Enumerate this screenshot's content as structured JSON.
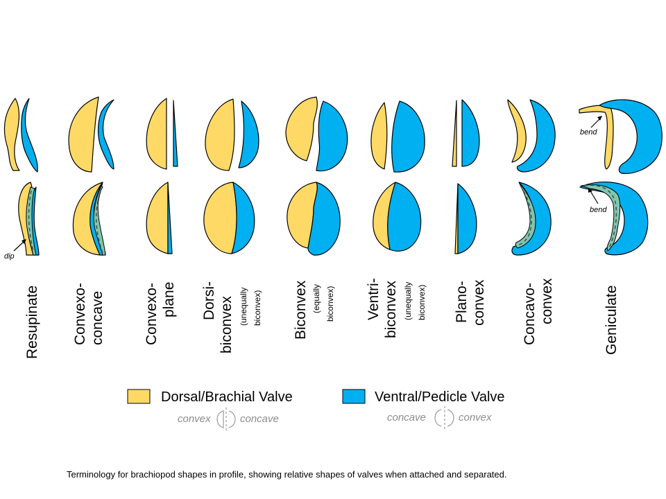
{
  "colors": {
    "dorsal": "#FFD966",
    "ventral": "#00B0F0",
    "overlap": "#7FC7AF"
  },
  "shapes": [
    {
      "name": "Resupinate",
      "lines": [
        "Resupinate"
      ],
      "sub": []
    },
    {
      "name": "Convexo-concave",
      "lines": [
        "Convexo-",
        "concave"
      ],
      "sub": []
    },
    {
      "name": "Convexo-plane",
      "lines": [
        "Convexo-",
        "plane"
      ],
      "sub": []
    },
    {
      "name": "Dorsi-biconvex",
      "lines": [
        "Dorsi-",
        "biconvex"
      ],
      "sub": [
        "(unequally",
        "biconvex)"
      ]
    },
    {
      "name": "Biconvex",
      "lines": [
        "Biconvex"
      ],
      "sub": [
        "(equally",
        "biconvex)"
      ]
    },
    {
      "name": "Ventri-biconvex",
      "lines": [
        "Ventri-",
        "biconvex"
      ],
      "sub": [
        "(unequally",
        "biconvex)"
      ]
    },
    {
      "name": "Plano-convex",
      "lines": [
        "Plano-",
        "convex"
      ],
      "sub": []
    },
    {
      "name": "Concavo-convex",
      "lines": [
        "Concavo-",
        "convex"
      ],
      "sub": []
    },
    {
      "name": "Geniculate",
      "lines": [
        "Geniculate"
      ],
      "sub": []
    }
  ],
  "annotations": {
    "dip": "dip",
    "bend_top": "bend",
    "bend_bottom": "bend"
  },
  "legend": {
    "dorsal": {
      "label": "Dorsal/Brachial Valve",
      "left": "convex",
      "right": "concave"
    },
    "ventral": {
      "label": "Ventral/Pedicle Valve",
      "left": "concave",
      "right": "convex"
    }
  },
  "caption": "Terminology for brachiopod shapes in profile, showing relative shapes of valves when attached and separated."
}
